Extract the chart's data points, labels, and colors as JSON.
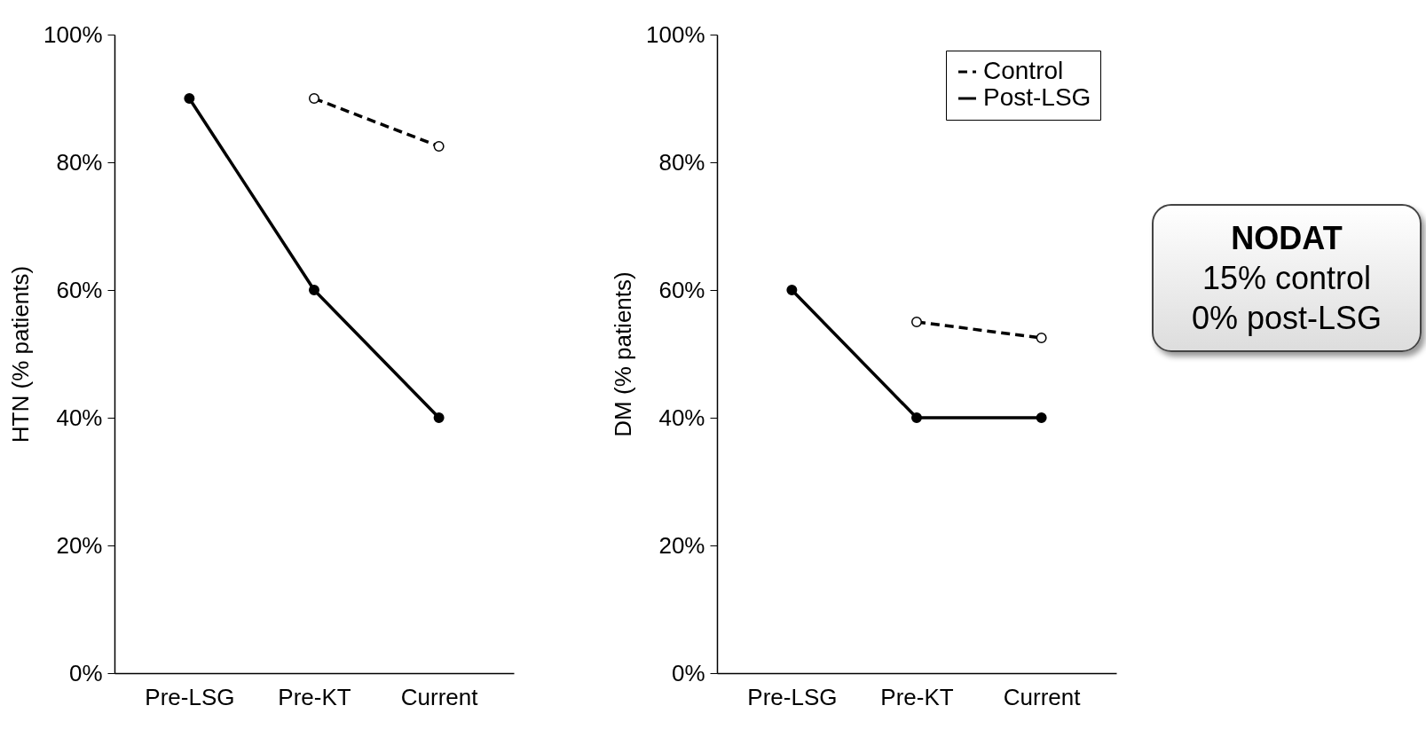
{
  "chart_data": [
    {
      "type": "line",
      "ylabel": "HTN (% patients)",
      "categories": [
        "Pre-LSG",
        "Pre-KT",
        "Current"
      ],
      "series": [
        {
          "color": "#000000",
          "line_style": "dashed",
          "values": [
            null,
            90,
            82.5
          ]
        },
        {
          "color": "#000000",
          "line_style": "solid",
          "values": [
            90,
            60,
            40
          ]
        }
      ],
      "ylim": [
        0,
        100
      ],
      "yticks": [
        {
          "value": 0,
          "label": "0%"
        },
        {
          "value": 20,
          "label": "20%"
        },
        {
          "value": 40,
          "label": "40%"
        },
        {
          "value": 60,
          "label": "60%"
        },
        {
          "value": 80,
          "label": "80%"
        },
        {
          "value": 100,
          "label": "100%"
        }
      ],
      "marker": "circle",
      "grid": false
    },
    {
      "type": "line",
      "ylabel": "DM (% patients)",
      "categories": [
        "Pre-LSG",
        "Pre-KT",
        "Current"
      ],
      "series": [
        {
          "name": "Control",
          "color": "#000000",
          "line_style": "dashed",
          "values": [
            null,
            55,
            52.5
          ]
        },
        {
          "name": "Post-LSG",
          "color": "#000000",
          "line_style": "solid",
          "values": [
            60,
            40,
            40
          ]
        }
      ],
      "ylim": [
        0,
        100
      ],
      "yticks": [
        {
          "value": 0,
          "label": "0%"
        },
        {
          "value": 20,
          "label": "20%"
        },
        {
          "value": 40,
          "label": "40%"
        },
        {
          "value": 60,
          "label": "60%"
        },
        {
          "value": 80,
          "label": "80%"
        },
        {
          "value": 100,
          "label": "100%"
        }
      ],
      "marker": "circle",
      "grid": false,
      "legend": "top right",
      "annotations": [
        "NODAT",
        "15% control",
        "0% post-LSG"
      ]
    }
  ]
}
